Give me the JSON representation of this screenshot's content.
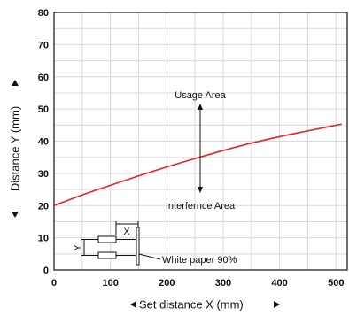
{
  "chart_data": {
    "type": "line",
    "xlabel": "Set distance X (mm)",
    "ylabel": "Distance Y (mm)",
    "xlim": [
      0,
      520
    ],
    "ylim": [
      0,
      80
    ],
    "xticks": [
      "0",
      "100",
      "200",
      "300",
      "400",
      "500"
    ],
    "yticks": [
      "0",
      "10",
      "20",
      "30",
      "40",
      "50",
      "60",
      "70",
      "80"
    ],
    "grid": true,
    "series": [
      {
        "color": "#e8212b",
        "x": [
          0,
          50,
          100,
          150,
          200,
          250,
          300,
          350,
          400,
          450,
          510
        ],
        "y": [
          20.0,
          23.3,
          26.3,
          29.2,
          32.0,
          34.6,
          37.1,
          39.4,
          41.4,
          43.2,
          45.3
        ]
      }
    ],
    "annotations": {
      "usage_area": "Usage Area",
      "interference_area": "Interfernce Area",
      "white_paper": "White paper 90%",
      "x_marker": "X",
      "y_marker": "Y"
    }
  }
}
